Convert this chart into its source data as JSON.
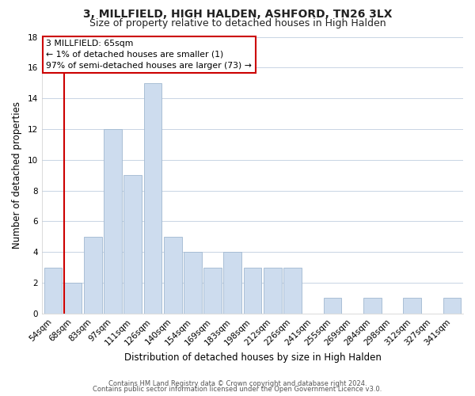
{
  "title": "3, MILLFIELD, HIGH HALDEN, ASHFORD, TN26 3LX",
  "subtitle": "Size of property relative to detached houses in High Halden",
  "xlabel": "Distribution of detached houses by size in High Halden",
  "ylabel": "Number of detached properties",
  "bar_labels": [
    "54sqm",
    "68sqm",
    "83sqm",
    "97sqm",
    "111sqm",
    "126sqm",
    "140sqm",
    "154sqm",
    "169sqm",
    "183sqm",
    "198sqm",
    "212sqm",
    "226sqm",
    "241sqm",
    "255sqm",
    "269sqm",
    "284sqm",
    "298sqm",
    "312sqm",
    "327sqm",
    "341sqm"
  ],
  "bar_values": [
    3,
    2,
    5,
    12,
    9,
    15,
    5,
    4,
    3,
    4,
    3,
    3,
    3,
    0,
    1,
    0,
    1,
    0,
    1,
    0,
    1
  ],
  "bar_color": "#cddcee",
  "bar_edge_color": "#a0b8d0",
  "highlight_color": "#cc0000",
  "annotation_line1": "3 MILLFIELD: 65sqm",
  "annotation_line2": "← 1% of detached houses are smaller (1)",
  "annotation_line3": "97% of semi-detached houses are larger (73) →",
  "annotation_box_edge": "#cc0000",
  "ylim": [
    0,
    18
  ],
  "yticks": [
    0,
    2,
    4,
    6,
    8,
    10,
    12,
    14,
    16,
    18
  ],
  "footer1": "Contains HM Land Registry data © Crown copyright and database right 2024.",
  "footer2": "Contains public sector information licensed under the Open Government Licence v3.0.",
  "background_color": "#ffffff",
  "grid_color": "#c8d4e4",
  "title_fontsize": 10,
  "subtitle_fontsize": 9,
  "axis_label_fontsize": 8.5,
  "tick_fontsize": 7.5,
  "footer_fontsize": 6.0
}
